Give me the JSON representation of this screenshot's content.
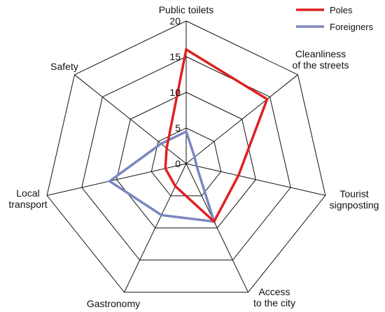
{
  "chart_data": {
    "type": "radar",
    "title": "",
    "categories": [
      "Public toilets",
      "Cleanliness of the streets",
      "Tourist signposting",
      "Access to the city",
      "Gastronomy",
      "Local transport",
      "Safety"
    ],
    "category_lines": [
      [
        "Public toilets"
      ],
      [
        "Cleanliness",
        "of the streets"
      ],
      [
        "Tourist",
        "signposting"
      ],
      [
        "Access",
        "to the city"
      ],
      [
        "Gastronomy"
      ],
      [
        "Local",
        "transport"
      ],
      [
        "Safety"
      ]
    ],
    "range": [
      0,
      20
    ],
    "ticks": [
      0,
      5,
      10,
      15,
      20
    ],
    "tick_labels": [
      "0",
      "5",
      "10",
      "15",
      "20"
    ],
    "grid": true,
    "legend_position": "top-right",
    "series": [
      {
        "name": "Poles",
        "color": "#e02020",
        "values": [
          16,
          14.5,
          7.5,
          9,
          3.5,
          3,
          3.5
        ]
      },
      {
        "name": "Foreigners",
        "color": "#7b86c0",
        "values": [
          4.5,
          1.5,
          1.5,
          9,
          8,
          11,
          4.5
        ]
      }
    ]
  }
}
